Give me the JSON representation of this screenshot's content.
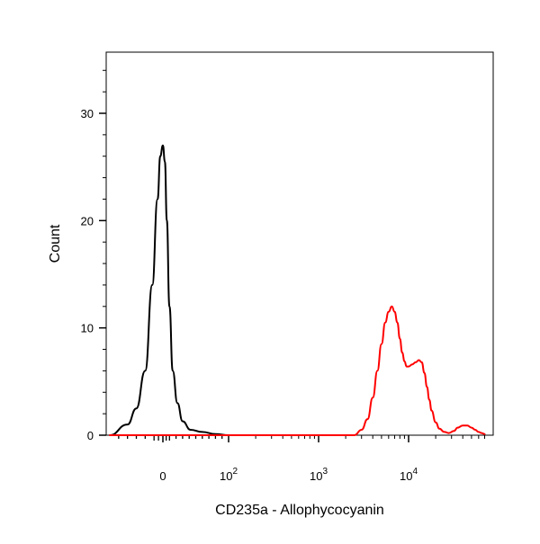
{
  "chart_data": {
    "type": "line",
    "title": "",
    "xlabel": "CD235a - Allophycocyanin",
    "ylabel": "Count",
    "x_scale": "biexponential",
    "xlim": [
      -60,
      70000
    ],
    "ylim": [
      0,
      35
    ],
    "grid": false,
    "legend": "none",
    "x_ticks": [
      {
        "value": 0,
        "base": "0",
        "exp": ""
      },
      {
        "value": 100,
        "base": "10",
        "exp": "2"
      },
      {
        "value": 1000,
        "base": "10",
        "exp": "3"
      },
      {
        "value": 10000,
        "base": "10",
        "exp": "4"
      }
    ],
    "y_ticks": [
      {
        "value": 0,
        "label": "0"
      },
      {
        "value": 10,
        "label": "10"
      },
      {
        "value": 20,
        "label": "20"
      },
      {
        "value": 30,
        "label": "30"
      }
    ],
    "series": [
      {
        "color": "#000000",
        "x": [
          -60,
          -40,
          -30,
          -20,
          -12,
          -6,
          -3,
          0,
          3,
          6,
          10,
          15,
          22,
          30,
          42,
          60,
          80,
          100
        ],
        "y": [
          0,
          1.0,
          2.5,
          6.0,
          14.0,
          22.0,
          26.0,
          27.0,
          25.5,
          20.0,
          12.0,
          6.0,
          3.0,
          1.3,
          0.5,
          0.3,
          0.1,
          0
        ]
      },
      {
        "color": "#ff0000",
        "x": [
          -60,
          500,
          2500,
          3000,
          3500,
          4000,
          4500,
          5000,
          5500,
          6000,
          6500,
          7000,
          7500,
          8000,
          8500,
          9000,
          9500,
          10000,
          11000,
          12000,
          13000,
          14000,
          15000,
          16000,
          17000,
          18000,
          20000,
          22000,
          25000,
          28000,
          32000,
          35000,
          40000,
          45000,
          50000,
          55000,
          60000,
          65000,
          70000
        ],
        "y": [
          0,
          0,
          0,
          0.5,
          1.5,
          3.5,
          6.0,
          8.5,
          10.5,
          11.5,
          12.0,
          11.5,
          10.5,
          9.0,
          7.7,
          6.9,
          6.4,
          6.4,
          6.6,
          6.8,
          7.0,
          6.8,
          5.8,
          4.5,
          3.3,
          2.3,
          1.2,
          0.6,
          0.3,
          0.2,
          0.4,
          0.7,
          0.9,
          0.9,
          0.7,
          0.5,
          0.3,
          0.2,
          0.1
        ]
      }
    ]
  }
}
